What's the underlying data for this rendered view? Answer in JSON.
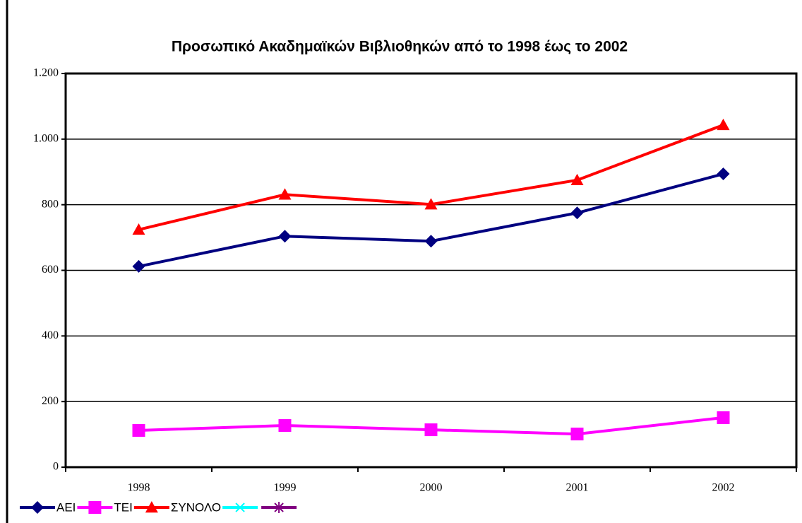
{
  "chart_data": {
    "type": "line",
    "title": "Προσωπικό Ακαδημαϊκών Βιβλιοθηκών από το 1998 έως το 2002",
    "categories": [
      "1998",
      "1999",
      "2000",
      "2001",
      "2002"
    ],
    "series": [
      {
        "name": "ΑΕΙ",
        "color": "#000080",
        "marker": "diamond",
        "values": [
          612,
          704,
          689,
          775,
          894
        ]
      },
      {
        "name": "ΤΕΙ",
        "color": "#ff00ff",
        "marker": "square",
        "values": [
          112,
          127,
          114,
          101,
          151
        ]
      },
      {
        "name": "ΣΥΝΟΛΟ",
        "color": "#ff0000",
        "marker": "triangle",
        "values": [
          724,
          831,
          801,
          875,
          1043
        ]
      },
      {
        "color": "#00ffff",
        "marker": "x",
        "values": [
          null,
          null,
          null,
          null,
          null
        ]
      },
      {
        "color": "#800080",
        "marker": "star",
        "values": [
          null,
          null,
          null,
          null,
          null
        ]
      }
    ],
    "ylim": [
      0,
      1200
    ],
    "yticks": [
      0,
      200,
      400,
      600,
      800,
      {
        "value": 1000,
        "label": "1.000"
      },
      {
        "value": 1200,
        "label": "1.200"
      }
    ],
    "grid": true,
    "legend": "bottom-left"
  }
}
